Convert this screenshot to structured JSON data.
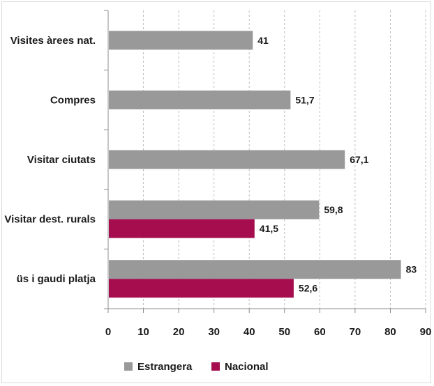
{
  "chart_data": {
    "type": "bar",
    "orientation": "horizontal",
    "categories": [
      "Visites àrees nat.",
      "Compres",
      "Visitar ciutats",
      "Visitar dest. rurals",
      "üs i gaudi platja"
    ],
    "series": [
      {
        "name": "Estrangera",
        "color": "#999999",
        "values": [
          41,
          51.7,
          67.1,
          59.8,
          83
        ],
        "labels": [
          "41",
          "51,7",
          "67,1",
          "59,8",
          "83"
        ]
      },
      {
        "name": "Nacional",
        "color": "#a50d4f",
        "values": [
          null,
          null,
          null,
          41.5,
          52.6
        ],
        "labels": [
          "",
          "",
          "",
          "41,5",
          "52,6"
        ]
      }
    ],
    "xlim": [
      0,
      90
    ],
    "xticks": [
      "0",
      "10",
      "20",
      "30",
      "40",
      "50",
      "60",
      "70",
      "80",
      "90"
    ],
    "grid": true,
    "legend": "bottom-left"
  }
}
